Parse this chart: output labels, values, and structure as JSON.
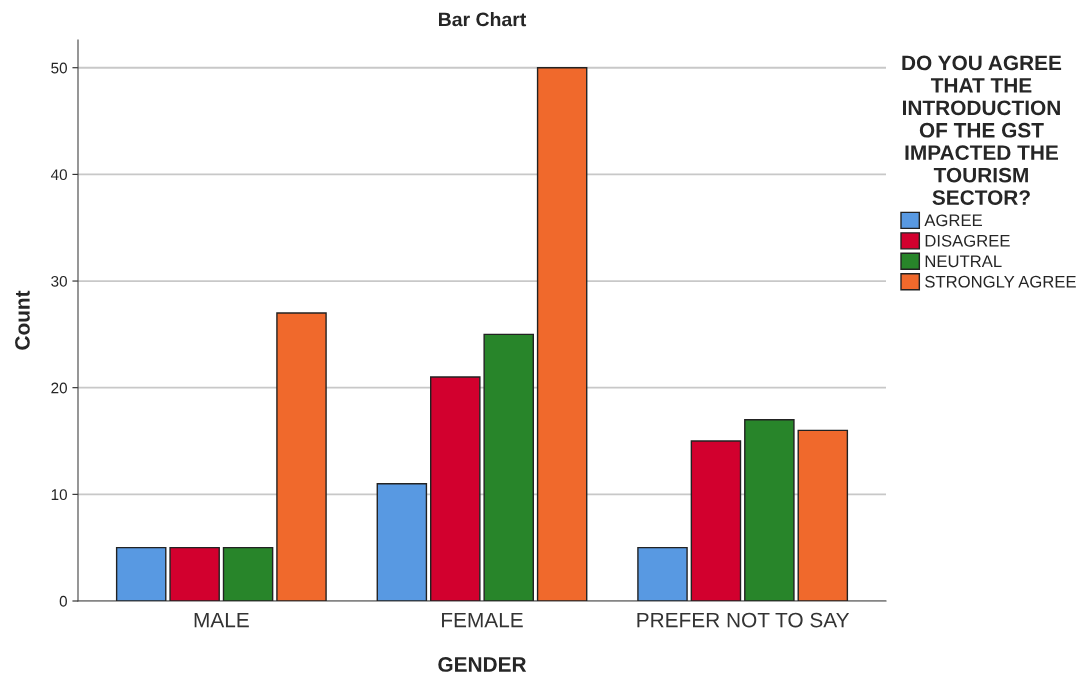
{
  "chart_data": {
    "type": "bar",
    "title": "Bar Chart",
    "xlabel": "GENDER",
    "ylabel": "Count",
    "legend_title": "DO YOU AGREE\nTHAT THE\nINTRODUCTION\nOF THE GST\nIMPACTED THE\nTOURISM\nSECTOR?",
    "categories": [
      "MALE",
      "FEMALE",
      "PREFER NOT TO SAY"
    ],
    "series": [
      {
        "name": "AGREE",
        "color": "#5899e2",
        "values": [
          5,
          11,
          5
        ]
      },
      {
        "name": "DISAGREE",
        "color": "#d2002e",
        "values": [
          5,
          21,
          15
        ]
      },
      {
        "name": "NEUTRAL",
        "color": "#28852a",
        "values": [
          5,
          25,
          17
        ]
      },
      {
        "name": "STRONGLY AGREE",
        "color": "#f0692c",
        "values": [
          27,
          50,
          16
        ]
      }
    ],
    "ylim": [
      0,
      52.6
    ],
    "yticks": [
      0,
      10,
      20,
      30,
      40,
      50
    ],
    "grid": "y",
    "legend": "right"
  }
}
